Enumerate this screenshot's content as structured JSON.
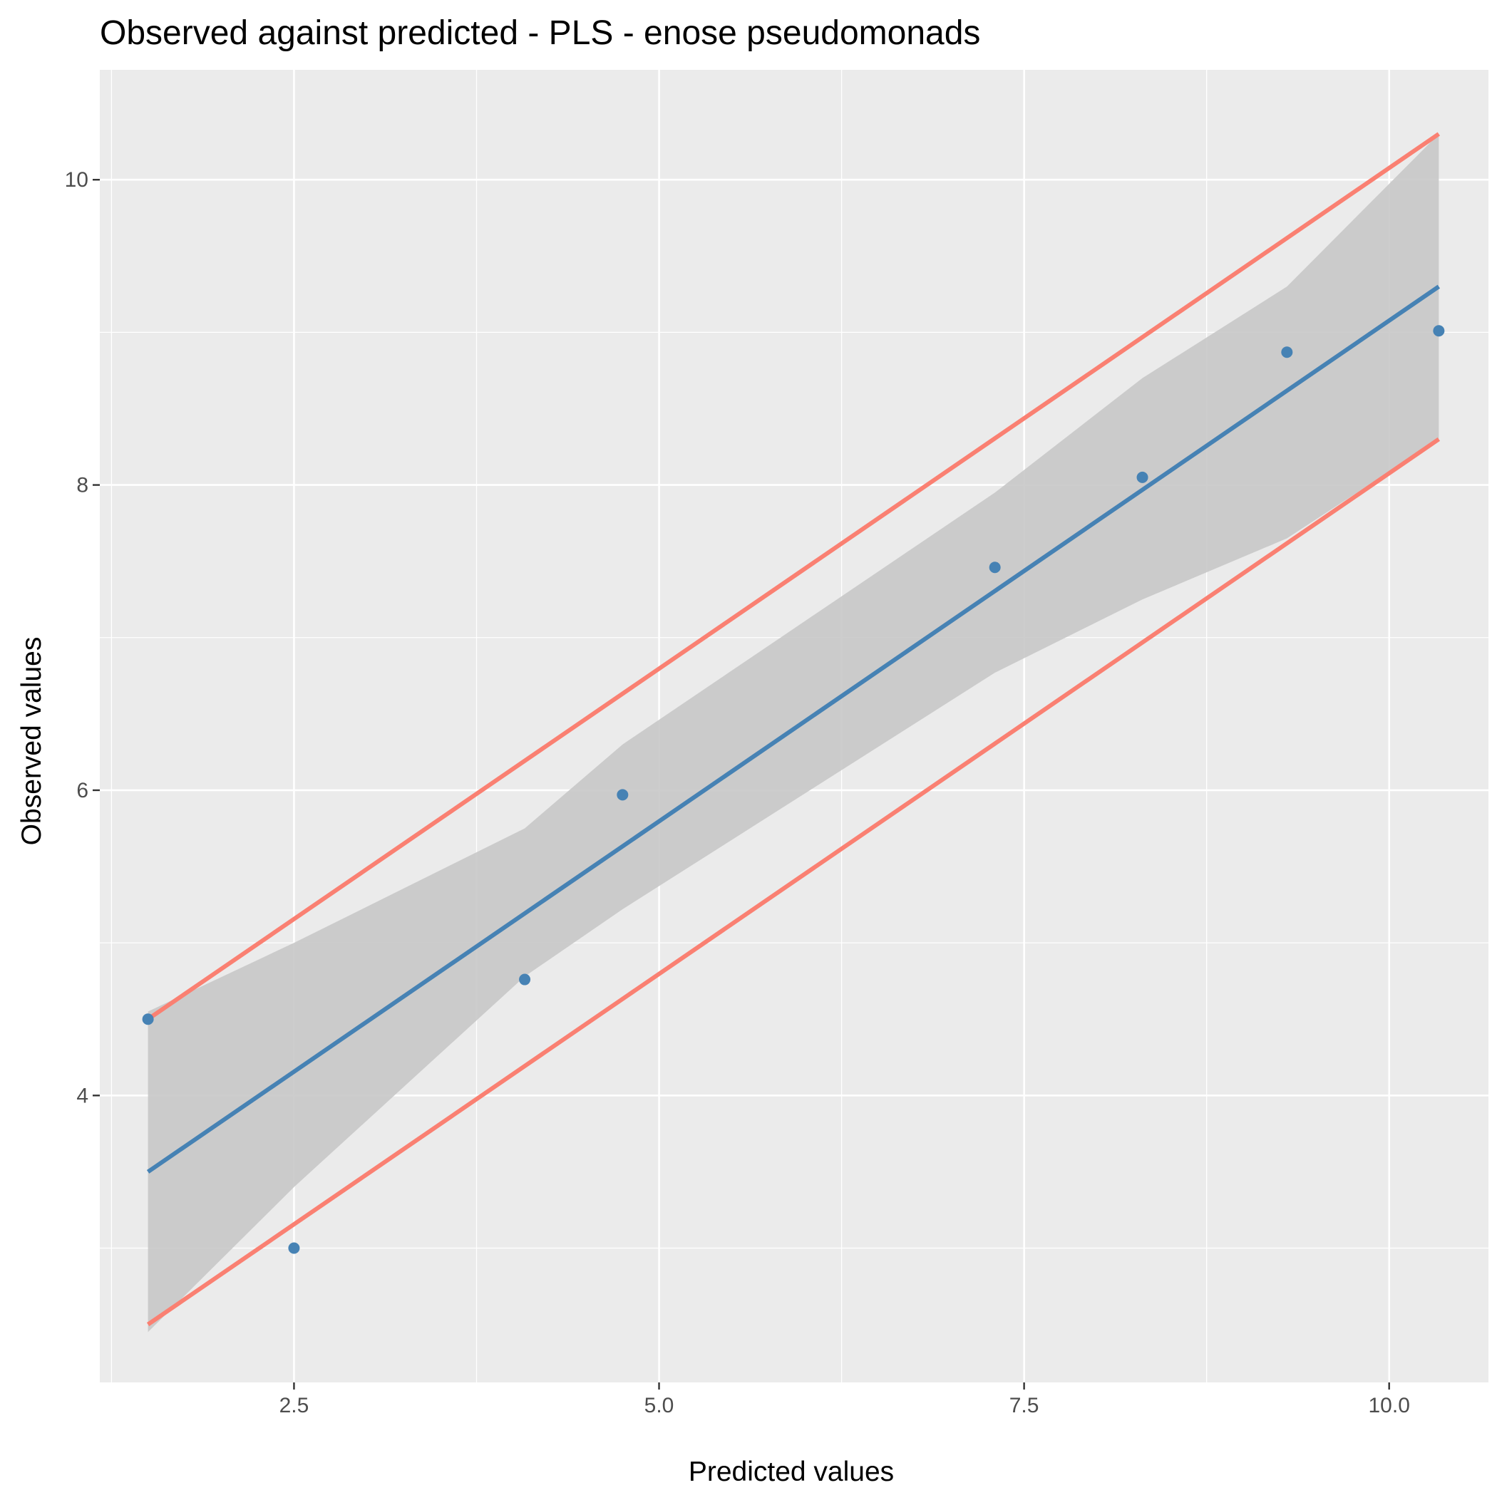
{
  "chart_data": {
    "type": "scatter",
    "title": "Observed against predicted - PLS - enose pseudomonads",
    "xlabel": "Predicted values",
    "ylabel": "Observed values",
    "xlim": [
      1.17,
      10.68
    ],
    "ylim": [
      2.12,
      10.72
    ],
    "x_ticks": [
      2.5,
      5.0,
      7.5,
      10.0
    ],
    "x_tick_labels": [
      "2.5",
      "5.0",
      "7.5",
      "10.0"
    ],
    "x_minor_ticks": [
      1.25,
      3.75,
      6.25,
      8.75
    ],
    "y_ticks": [
      4,
      6,
      8,
      10
    ],
    "y_tick_labels": [
      "4",
      "6",
      "8",
      "10"
    ],
    "y_minor_ticks": [
      3,
      5,
      7,
      9
    ],
    "grid": true,
    "legend": "none",
    "colors": {
      "panel_background": "#EBEBEB",
      "grid": "#FFFFFF",
      "points": "#4682B4",
      "fit_line": "#4682B4",
      "confidence_band": "#C8C8C8",
      "limit_lines": "#FA8072",
      "axis_ticks": "#333333",
      "tick_labels": "#4D4D4D"
    },
    "series": [
      {
        "kind": "points",
        "x": [
          1.5,
          2.5,
          4.08,
          4.75,
          7.3,
          8.31,
          9.3,
          10.34
        ],
        "y": [
          4.5,
          3.0,
          4.76,
          5.97,
          7.46,
          8.05,
          8.87,
          9.01
        ]
      },
      {
        "kind": "fit_line",
        "x": [
          1.5,
          10.34
        ],
        "y": [
          3.5,
          9.3
        ]
      },
      {
        "kind": "confidence_band",
        "x": [
          1.5,
          2.5,
          4.08,
          4.75,
          7.3,
          8.31,
          9.3,
          10.34
        ],
        "lower": [
          2.45,
          3.4,
          4.78,
          5.22,
          6.77,
          7.25,
          7.65,
          8.3
        ],
        "upper": [
          4.55,
          5.0,
          5.75,
          6.3,
          7.95,
          8.7,
          9.3,
          10.3
        ]
      },
      {
        "kind": "upper_limit_line",
        "x": [
          1.5,
          10.34
        ],
        "y": [
          4.5,
          10.3
        ]
      },
      {
        "kind": "lower_limit_line",
        "x": [
          1.5,
          10.34
        ],
        "y": [
          2.5,
          8.3
        ]
      }
    ]
  }
}
